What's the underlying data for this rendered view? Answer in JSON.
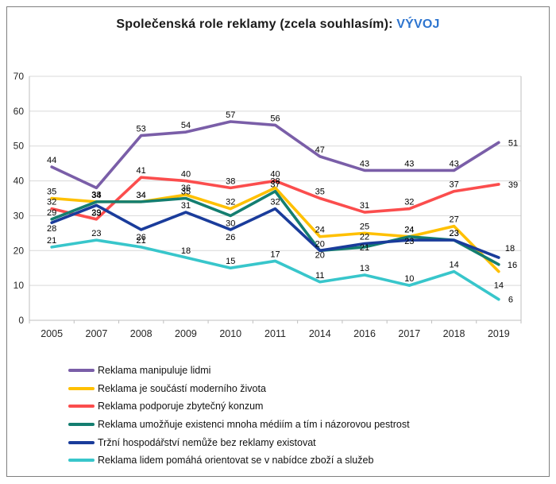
{
  "title": {
    "main": "Společenská role reklamy (zcela souhlasím): ",
    "highlight": "VÝVOJ",
    "highlight_color": "#2E75CF"
  },
  "chart_data": {
    "type": "line",
    "categories": [
      "2005",
      "2007",
      "2008",
      "2009",
      "2010",
      "2011",
      "2014",
      "2016",
      "2017",
      "2018",
      "2019"
    ],
    "ylim": [
      0,
      70
    ],
    "ytick_interval": 10,
    "grid": true,
    "legend_position": "bottom",
    "series": [
      {
        "name": "Reklama manipuluje lidmi",
        "color": "#7A5EA8",
        "values": [
          44,
          38,
          53,
          54,
          57,
          56,
          47,
          43,
          43,
          43,
          51
        ]
      },
      {
        "name": "Reklama je součástí moderního života",
        "color": "#FFC000",
        "values": [
          35,
          34,
          34,
          36,
          32,
          38,
          24,
          25,
          24,
          27,
          14
        ]
      },
      {
        "name": "Reklama podporuje zbytečný konzum",
        "color": "#FB4D4D",
        "values": [
          32,
          29,
          41,
          40,
          38,
          40,
          35,
          31,
          32,
          37,
          39
        ]
      },
      {
        "name": "Reklama umožňuje existenci mnoha médiím a tím i názorovou pestrost",
        "color": "#147E70",
        "values": [
          29,
          34,
          34,
          35,
          30,
          37,
          20,
          21,
          24,
          23,
          16
        ]
      },
      {
        "name": "Tržní hospodářství nemůže bez reklamy existovat",
        "color": "#1A3C9B",
        "values": [
          28,
          33,
          26,
          31,
          26,
          32,
          20,
          22,
          23,
          23,
          18
        ]
      },
      {
        "name": "Reklama lidem pomáhá orientovat se v nabídce zboží a služeb",
        "color": "#38C6CB",
        "values": [
          21,
          23,
          21,
          18,
          15,
          17,
          11,
          13,
          10,
          14,
          6
        ]
      }
    ],
    "colors": {
      "grid": "#D9D9D9",
      "axis": "#BFBFBF",
      "tick_label": "#262626",
      "data_label": "#000000"
    }
  }
}
